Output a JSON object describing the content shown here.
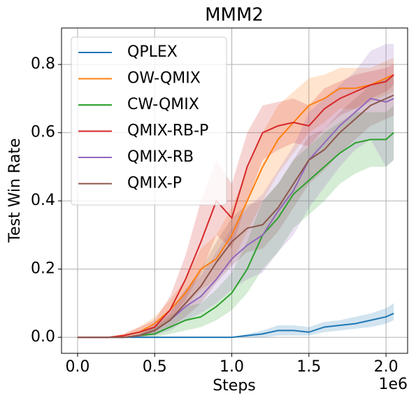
{
  "chart_data": {
    "type": "line",
    "title": "MMM2",
    "xlabel": "Steps",
    "ylabel": "Test Win Rate",
    "x_offset_label": "1e6",
    "x": [
      0,
      100000,
      200000,
      300000,
      400000,
      500000,
      600000,
      700000,
      800000,
      900000,
      1000000,
      1100000,
      1200000,
      1300000,
      1400000,
      1500000,
      1600000,
      1700000,
      1800000,
      1900000,
      2000000,
      2050000
    ],
    "xlim": [
      -104000,
      2140000
    ],
    "xticks": [
      {
        "value": 0,
        "label": "0.0"
      },
      {
        "value": 500000,
        "label": "0.5"
      },
      {
        "value": 1000000,
        "label": "1.0"
      },
      {
        "value": 1500000,
        "label": "1.5"
      },
      {
        "value": 2000000,
        "label": "2.0"
      }
    ],
    "ylim": [
      -0.047,
      0.907
    ],
    "yticks": [
      {
        "value": 0,
        "label": "0.0"
      },
      {
        "value": 0.2,
        "label": "0.2"
      },
      {
        "value": 0.4,
        "label": "0.4"
      },
      {
        "value": 0.6,
        "label": "0.6"
      },
      {
        "value": 0.8,
        "label": "0.8"
      }
    ],
    "grid": true,
    "legend": "upper left",
    "series": [
      {
        "name": "QPLEX",
        "color": "#1f77b4",
        "values": [
          0,
          0,
          0,
          0,
          0,
          0,
          0,
          0,
          0,
          0,
          0,
          0.005,
          0.01,
          0.02,
          0.02,
          0.015,
          0.03,
          0.035,
          0.04,
          0.05,
          0.06,
          0.07
        ],
        "lower": [
          0,
          0,
          0,
          0,
          0,
          0,
          0,
          0,
          0,
          0,
          0,
          0,
          0,
          0.005,
          0.005,
          0.005,
          0.015,
          0.02,
          0.025,
          0.03,
          0.04,
          0.05
        ],
        "upper": [
          0,
          0,
          0,
          0,
          0,
          0,
          0,
          0,
          0,
          0,
          0,
          0.01,
          0.02,
          0.035,
          0.035,
          0.03,
          0.045,
          0.05,
          0.06,
          0.07,
          0.085,
          0.1
        ]
      },
      {
        "name": "OW-QMIX",
        "color": "#ff7f0e",
        "values": [
          0,
          0,
          0,
          0.005,
          0.015,
          0.04,
          0.08,
          0.13,
          0.2,
          0.23,
          0.3,
          0.4,
          0.5,
          0.58,
          0.63,
          0.68,
          0.7,
          0.73,
          0.73,
          0.74,
          0.76,
          0.77
        ],
        "lower": [
          0,
          0,
          0,
          0,
          0.005,
          0.02,
          0.05,
          0.09,
          0.14,
          0.17,
          0.22,
          0.31,
          0.4,
          0.48,
          0.54,
          0.6,
          0.63,
          0.67,
          0.67,
          0.69,
          0.71,
          0.72
        ],
        "upper": [
          0,
          0,
          0,
          0.01,
          0.03,
          0.06,
          0.11,
          0.17,
          0.26,
          0.3,
          0.38,
          0.49,
          0.6,
          0.68,
          0.72,
          0.76,
          0.77,
          0.79,
          0.79,
          0.79,
          0.81,
          0.82
        ]
      },
      {
        "name": "CW-QMIX",
        "color": "#2ca02c",
        "values": [
          0,
          0,
          0,
          0,
          0.005,
          0.01,
          0.03,
          0.05,
          0.06,
          0.09,
          0.13,
          0.2,
          0.3,
          0.35,
          0.42,
          0.46,
          0.5,
          0.54,
          0.57,
          0.58,
          0.58,
          0.6
        ],
        "lower": [
          0,
          0,
          0,
          0,
          0,
          0,
          0.01,
          0.02,
          0.03,
          0.05,
          0.08,
          0.13,
          0.2,
          0.25,
          0.32,
          0.36,
          0.4,
          0.45,
          0.48,
          0.5,
          0.5,
          0.52
        ],
        "upper": [
          0,
          0,
          0,
          0,
          0.01,
          0.03,
          0.06,
          0.09,
          0.1,
          0.14,
          0.19,
          0.28,
          0.4,
          0.45,
          0.52,
          0.56,
          0.6,
          0.63,
          0.66,
          0.66,
          0.66,
          0.68
        ]
      },
      {
        "name": "QMIX-RB-P",
        "color": "#d62728",
        "values": [
          0,
          0,
          0,
          0.005,
          0.015,
          0.03,
          0.08,
          0.17,
          0.28,
          0.4,
          0.35,
          0.5,
          0.6,
          0.62,
          0.63,
          0.62,
          0.67,
          0.7,
          0.72,
          0.74,
          0.75,
          0.77
        ],
        "lower": [
          0,
          0,
          0,
          0,
          0.005,
          0.015,
          0.05,
          0.11,
          0.19,
          0.3,
          0.26,
          0.4,
          0.52,
          0.55,
          0.57,
          0.56,
          0.61,
          0.65,
          0.67,
          0.7,
          0.72,
          0.74
        ],
        "upper": [
          0,
          0,
          0,
          0.01,
          0.03,
          0.05,
          0.12,
          0.24,
          0.4,
          0.52,
          0.45,
          0.6,
          0.68,
          0.69,
          0.7,
          0.68,
          0.73,
          0.75,
          0.77,
          0.78,
          0.79,
          0.8
        ]
      },
      {
        "name": "QMIX-RB",
        "color": "#9467bd",
        "values": [
          0,
          0,
          0,
          0,
          0.005,
          0.02,
          0.05,
          0.09,
          0.12,
          0.17,
          0.23,
          0.27,
          0.3,
          0.37,
          0.43,
          0.52,
          0.57,
          0.62,
          0.66,
          0.7,
          0.69,
          0.7
        ],
        "lower": [
          0,
          0,
          0,
          0,
          0,
          0.005,
          0.02,
          0.05,
          0.07,
          0.1,
          0.14,
          0.17,
          0.19,
          0.25,
          0.3,
          0.38,
          0.44,
          0.5,
          0.55,
          0.58,
          0.5,
          0.52
        ],
        "upper": [
          0,
          0,
          0,
          0,
          0.01,
          0.04,
          0.08,
          0.14,
          0.18,
          0.25,
          0.32,
          0.38,
          0.42,
          0.49,
          0.56,
          0.66,
          0.7,
          0.74,
          0.78,
          0.84,
          0.86,
          0.86
        ]
      },
      {
        "name": "QMIX-P",
        "color": "#8c564b",
        "values": [
          0,
          0,
          0,
          0,
          0.005,
          0.02,
          0.05,
          0.1,
          0.15,
          0.22,
          0.28,
          0.32,
          0.33,
          0.38,
          0.45,
          0.52,
          0.55,
          0.6,
          0.64,
          0.68,
          0.7,
          0.71
        ],
        "lower": [
          0,
          0,
          0,
          0,
          0,
          0.01,
          0.03,
          0.06,
          0.1,
          0.16,
          0.21,
          0.25,
          0.26,
          0.31,
          0.38,
          0.45,
          0.49,
          0.54,
          0.58,
          0.62,
          0.64,
          0.65
        ],
        "upper": [
          0,
          0,
          0,
          0,
          0.01,
          0.03,
          0.07,
          0.14,
          0.2,
          0.28,
          0.35,
          0.39,
          0.4,
          0.45,
          0.52,
          0.59,
          0.61,
          0.66,
          0.7,
          0.74,
          0.76,
          0.77
        ]
      }
    ]
  }
}
